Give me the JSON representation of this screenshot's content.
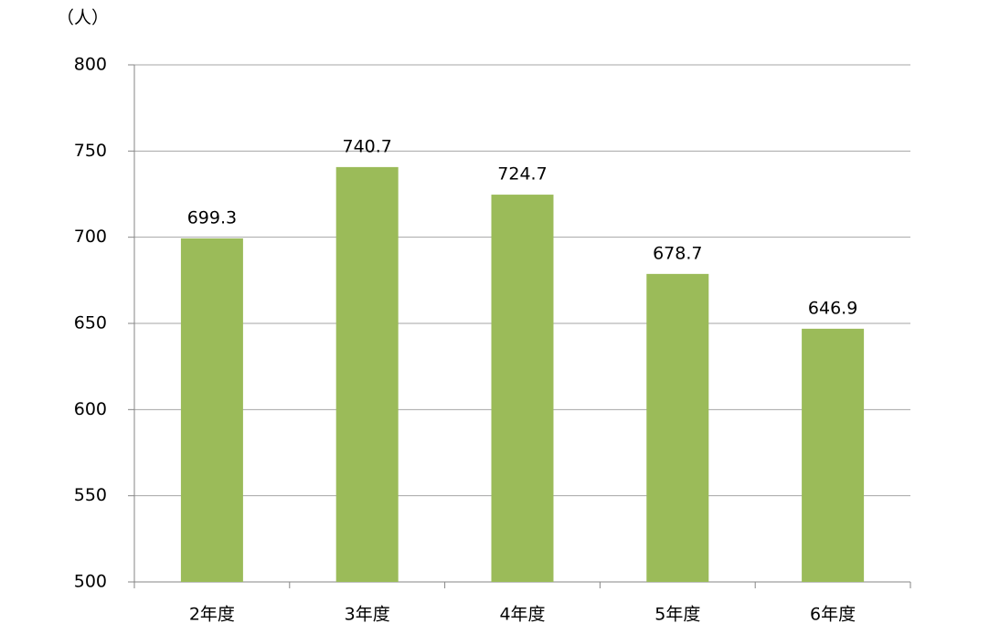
{
  "chart_data": {
    "type": "bar",
    "y_unit": "（人）",
    "categories": [
      "2年度",
      "3年度",
      "4年度",
      "5年度",
      "6年度"
    ],
    "values": [
      699.3,
      740.7,
      724.7,
      678.7,
      646.9
    ],
    "color": "#9bbb59",
    "ylim": [
      500,
      800
    ],
    "yticks": [
      500,
      550,
      600,
      650,
      700,
      750,
      800
    ],
    "grid": true
  }
}
